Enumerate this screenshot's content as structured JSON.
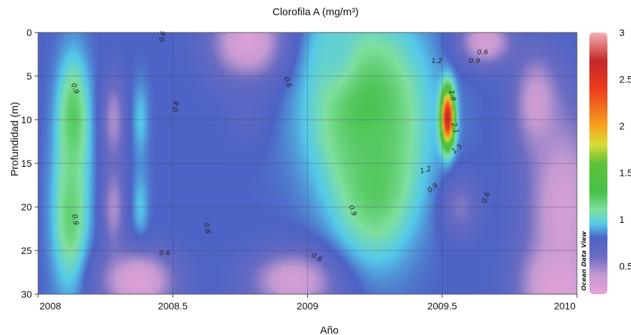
{
  "chart_data": {
    "type": "heatmap",
    "title": "Clorofila A (mg/m³)",
    "xlabel": "Año",
    "ylabel": "Profundidad (m)",
    "xlim": [
      2008,
      2010
    ],
    "ylim": [
      0,
      30
    ],
    "y_inverted": true,
    "grid": true,
    "x_ticks": [
      {
        "value": 2008,
        "label": "2008"
      },
      {
        "value": 2008.5,
        "label": "2008.5"
      },
      {
        "value": 2009,
        "label": "2009"
      },
      {
        "value": 2009.5,
        "label": "2009.5"
      },
      {
        "value": 2010,
        "label": "2010"
      }
    ],
    "y_ticks": [
      {
        "value": 0,
        "label": "0"
      },
      {
        "value": 5,
        "label": "5"
      },
      {
        "value": 10,
        "label": "10"
      },
      {
        "value": 15,
        "label": "15"
      },
      {
        "value": 20,
        "label": "20"
      },
      {
        "value": 25,
        "label": "25"
      },
      {
        "value": 30,
        "label": "30"
      }
    ],
    "colorbar": {
      "range": [
        0.2,
        3.0
      ],
      "ticks": [
        {
          "value": 0.5,
          "label": "0.5"
        },
        {
          "value": 1,
          "label": "1"
        },
        {
          "value": 1.5,
          "label": "1.5"
        },
        {
          "value": 2,
          "label": "2"
        },
        {
          "value": 2.5,
          "label": "2.5"
        },
        {
          "value": 3,
          "label": "3"
        }
      ],
      "colors": [
        {
          "value": 0.2,
          "color": "#e6a3d8"
        },
        {
          "value": 0.4,
          "color": "#c49ad2"
        },
        {
          "value": 0.6,
          "color": "#6a6cc2"
        },
        {
          "value": 0.8,
          "color": "#4d63c6"
        },
        {
          "value": 0.95,
          "color": "#55c9ea"
        },
        {
          "value": 1.1,
          "color": "#7fe0a0"
        },
        {
          "value": 1.3,
          "color": "#46c049"
        },
        {
          "value": 1.6,
          "color": "#5fc23a"
        },
        {
          "value": 1.8,
          "color": "#d8dd36"
        },
        {
          "value": 2.0,
          "color": "#f6a21f"
        },
        {
          "value": 2.4,
          "color": "#ec3b1c"
        },
        {
          "value": 2.7,
          "color": "#c22a2a"
        },
        {
          "value": 3.0,
          "color": "#f3b0b6"
        }
      ]
    },
    "contour_labels": [
      {
        "x": 2008.47,
        "y": 0.5,
        "label": "0.6",
        "rotate": -80
      },
      {
        "x": 2008.13,
        "y": 6.5,
        "label": "0.9",
        "rotate": 70
      },
      {
        "x": 2008.52,
        "y": 8.5,
        "label": "0.6",
        "rotate": -80
      },
      {
        "x": 2008.92,
        "y": 5.8,
        "label": "0.6",
        "rotate": 70
      },
      {
        "x": 2009.48,
        "y": 3.5,
        "label": "1.2",
        "rotate": 0
      },
      {
        "x": 2009.62,
        "y": 3.5,
        "label": "0.9",
        "rotate": 0
      },
      {
        "x": 2009.65,
        "y": 2.5,
        "label": "0.6",
        "rotate": 0
      },
      {
        "x": 2009.53,
        "y": 7.3,
        "label": "1.8",
        "rotate": 75
      },
      {
        "x": 2009.54,
        "y": 11.0,
        "label": "2.1",
        "rotate": 75
      },
      {
        "x": 2009.56,
        "y": 13.5,
        "label": "1.5",
        "rotate": -40
      },
      {
        "x": 2009.44,
        "y": 16.0,
        "label": "1.2",
        "rotate": -15
      },
      {
        "x": 2009.47,
        "y": 18.0,
        "label": "0.9",
        "rotate": -40
      },
      {
        "x": 2009.67,
        "y": 19.0,
        "label": "0.6",
        "rotate": -70
      },
      {
        "x": 2009.16,
        "y": 20.5,
        "label": "0.9",
        "rotate": 70
      },
      {
        "x": 2008.13,
        "y": 21.5,
        "label": "0.9",
        "rotate": 80
      },
      {
        "x": 2008.62,
        "y": 22.5,
        "label": "0.6",
        "rotate": 80
      },
      {
        "x": 2008.47,
        "y": 25.5,
        "label": "0.6",
        "rotate": 0
      },
      {
        "x": 2009.03,
        "y": 26.0,
        "label": "0.6",
        "rotate": 30
      }
    ],
    "field_features": [
      {
        "x": 2008.0,
        "y": 15,
        "sx": 0.005,
        "sy": 14,
        "value": 0.75
      },
      {
        "x": 2008.13,
        "y": 10,
        "sx": 0.04,
        "sy": 5,
        "value": 1.25
      },
      {
        "x": 2008.12,
        "y": 21,
        "sx": 0.045,
        "sy": 6,
        "value": 1.2
      },
      {
        "x": 2008.28,
        "y": 10,
        "sx": 0.03,
        "sy": 3.5,
        "value": 0.45
      },
      {
        "x": 2008.38,
        "y": 10,
        "sx": 0.02,
        "sy": 3,
        "value": 0.95
      },
      {
        "x": 2008.28,
        "y": 20,
        "sx": 0.03,
        "sy": 3.5,
        "value": 0.45
      },
      {
        "x": 2008.38,
        "y": 20,
        "sx": 0.02,
        "sy": 3,
        "value": 0.95
      },
      {
        "x": 2008.78,
        "y": 1,
        "sx": 0.1,
        "sy": 3.5,
        "value": 0.25
      },
      {
        "x": 2008.78,
        "y": 9.5,
        "sx": 0.06,
        "sy": 2.5,
        "value": 0.7
      },
      {
        "x": 2008.78,
        "y": 20,
        "sx": 0.04,
        "sy": 2.5,
        "value": 0.8
      },
      {
        "x": 2008.37,
        "y": 28.5,
        "sx": 0.1,
        "sy": 2.5,
        "value": 0.25
      },
      {
        "x": 2008.95,
        "y": 28.5,
        "sx": 0.12,
        "sy": 2.5,
        "value": 0.3
      },
      {
        "x": 2009.22,
        "y": 8.5,
        "sx": 0.15,
        "sy": 7,
        "value": 1.3
      },
      {
        "x": 2009.25,
        "y": 17,
        "sx": 0.1,
        "sy": 6,
        "value": 1.25
      },
      {
        "x": 2009.1,
        "y": 2,
        "sx": 0.06,
        "sy": 3,
        "value": 1.0
      },
      {
        "x": 2009.52,
        "y": 9.8,
        "sx": 0.017,
        "sy": 2.2,
        "value": 2.7
      },
      {
        "x": 2009.66,
        "y": 1,
        "sx": 0.07,
        "sy": 2,
        "value": 0.3
      },
      {
        "x": 2009.57,
        "y": 20,
        "sx": 0.05,
        "sy": 2.5,
        "value": 0.55
      },
      {
        "x": 2009.95,
        "y": 20,
        "sx": 0.1,
        "sy": 8,
        "value": 0.3
      },
      {
        "x": 2009.93,
        "y": 29,
        "sx": 0.1,
        "sy": 3,
        "value": 0.25
      },
      {
        "x": 2009.85,
        "y": 8,
        "sx": 0.06,
        "sy": 4,
        "value": 0.35
      }
    ],
    "watermark": "Ocean Data View"
  }
}
